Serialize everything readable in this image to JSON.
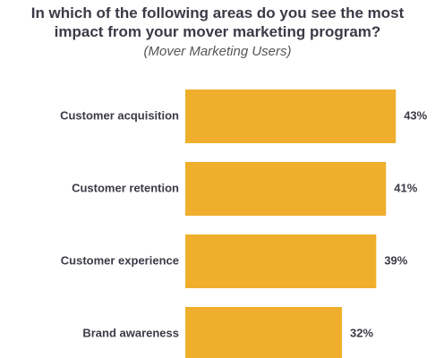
{
  "chart_data": {
    "type": "bar",
    "orientation": "horizontal",
    "title": "In which of the following areas do you see the most impact from your mover marketing program?",
    "subtitle": "(Mover Marketing Users)",
    "categories": [
      "Customer acquisition",
      "Customer retention",
      "Customer experience",
      "Brand awareness"
    ],
    "values": [
      43,
      41,
      39,
      32
    ],
    "value_labels": [
      "43%",
      "41%",
      "39%",
      "32%"
    ],
    "color": "#efae2c"
  }
}
